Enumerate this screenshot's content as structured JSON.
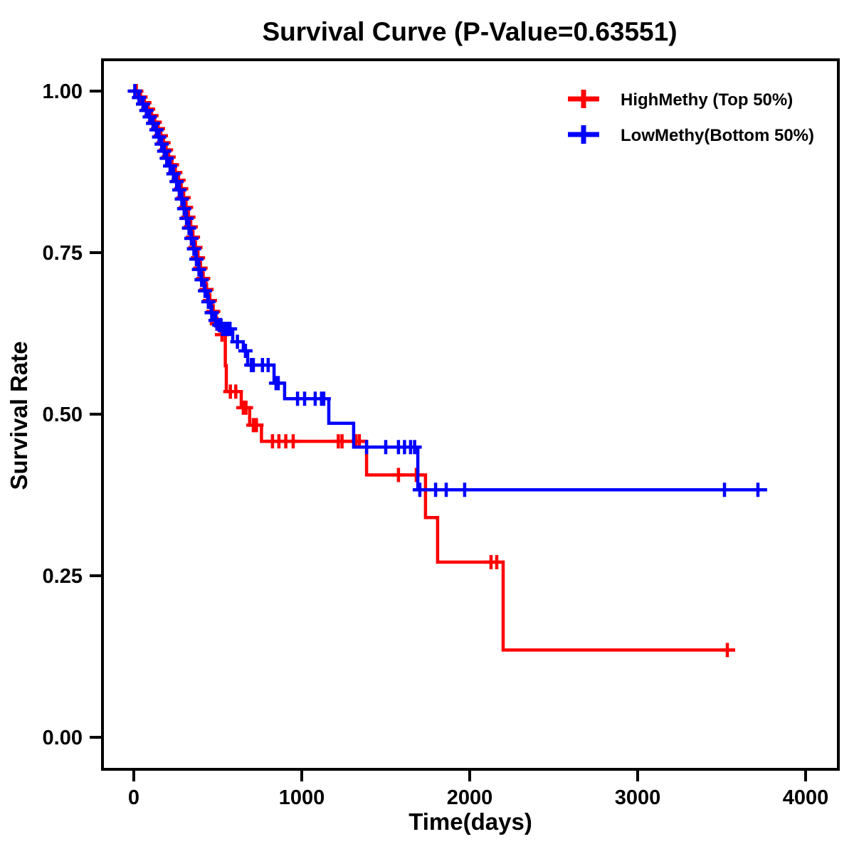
{
  "title": "Survival Curve (P-Value=0.63551)",
  "p_value": "0.63551",
  "colors": {
    "background": "#ffffff",
    "axis": "#000000",
    "high_methy": "#ff0000",
    "low_methy": "#0000ff"
  },
  "chart_data": {
    "type": "line",
    "subtype": "kaplan-meier-step",
    "title": "Survival Curve (P-Value=0.63551)",
    "xlabel": "Time(days)",
    "ylabel": "Survival Rate",
    "grid": false,
    "legend_position": "top-right-inside",
    "xlim": [
      -186,
      4195
    ],
    "ylim": [
      -0.05,
      1.048
    ],
    "x_ticks": [
      {
        "label": "0",
        "value": 0
      },
      {
        "label": "1000",
        "value": 1000
      },
      {
        "label": "2000",
        "value": 2000
      },
      {
        "label": "3000",
        "value": 3000
      },
      {
        "label": "4000",
        "value": 4000
      }
    ],
    "y_ticks": [
      {
        "label": "0.00",
        "value": 0.0
      },
      {
        "label": "0.25",
        "value": 0.25
      },
      {
        "label": "0.50",
        "value": 0.5
      },
      {
        "label": "0.75",
        "value": 0.75
      },
      {
        "label": "1.00",
        "value": 1.0
      }
    ],
    "series": [
      {
        "name": "HighMethy (Top 50%)",
        "color": "#ff0000",
        "end_day": 3581,
        "steps": [
          [
            0,
            1.0
          ],
          [
            35,
            0.991
          ],
          [
            60,
            0.982
          ],
          [
            80,
            0.972
          ],
          [
            100,
            0.962
          ],
          [
            120,
            0.952
          ],
          [
            140,
            0.942
          ],
          [
            158,
            0.931
          ],
          [
            173,
            0.92
          ],
          [
            188,
            0.909
          ],
          [
            203,
            0.898
          ],
          [
            222,
            0.886
          ],
          [
            242,
            0.874
          ],
          [
            262,
            0.862
          ],
          [
            278,
            0.849
          ],
          [
            293,
            0.835
          ],
          [
            307,
            0.82
          ],
          [
            320,
            0.805
          ],
          [
            334,
            0.79
          ],
          [
            348,
            0.774
          ],
          [
            362,
            0.758
          ],
          [
            377,
            0.742
          ],
          [
            392,
            0.726
          ],
          [
            408,
            0.71
          ],
          [
            428,
            0.693
          ],
          [
            448,
            0.676
          ],
          [
            468,
            0.659
          ],
          [
            489,
            0.64
          ],
          [
            520,
            0.623
          ],
          [
            545,
            0.575
          ],
          [
            551,
            0.535
          ],
          [
            640,
            0.51
          ],
          [
            690,
            0.483
          ],
          [
            760,
            0.458
          ],
          [
            1386,
            0.406
          ],
          [
            1737,
            0.34
          ],
          [
            1809,
            0.271
          ],
          [
            2199,
            0.135
          ]
        ],
        "censor_days": [
          15,
          40,
          63,
          85,
          105,
          124,
          144,
          161,
          177,
          192,
          207,
          227,
          247,
          266,
          282,
          297,
          311,
          325,
          339,
          352,
          367,
          382,
          397,
          413,
          433,
          453,
          473,
          495,
          525,
          575,
          607,
          652,
          668,
          712,
          730,
          826,
          864,
          905,
          949,
          1218,
          1240,
          1322,
          1343,
          1576,
          1682,
          2127,
          2161,
          3534
        ]
      },
      {
        "name": "LowMethy(Bottom 50%)",
        "color": "#0000ff",
        "end_day": 3771,
        "steps": [
          [
            0,
            1.0
          ],
          [
            28,
            0.99
          ],
          [
            52,
            0.98
          ],
          [
            72,
            0.97
          ],
          [
            92,
            0.96
          ],
          [
            112,
            0.95
          ],
          [
            132,
            0.94
          ],
          [
            148,
            0.929
          ],
          [
            163,
            0.918
          ],
          [
            178,
            0.907
          ],
          [
            193,
            0.896
          ],
          [
            212,
            0.884
          ],
          [
            232,
            0.872
          ],
          [
            252,
            0.86
          ],
          [
            268,
            0.847
          ],
          [
            283,
            0.833
          ],
          [
            297,
            0.818
          ],
          [
            310,
            0.803
          ],
          [
            326,
            0.788
          ],
          [
            340,
            0.772
          ],
          [
            355,
            0.756
          ],
          [
            370,
            0.74
          ],
          [
            385,
            0.724
          ],
          [
            400,
            0.708
          ],
          [
            420,
            0.691
          ],
          [
            440,
            0.674
          ],
          [
            460,
            0.657
          ],
          [
            483,
            0.645
          ],
          [
            505,
            0.638
          ],
          [
            520,
            0.632
          ],
          [
            589,
            0.612
          ],
          [
            652,
            0.598
          ],
          [
            678,
            0.576
          ],
          [
            835,
            0.548
          ],
          [
            898,
            0.524
          ],
          [
            1161,
            0.486
          ],
          [
            1309,
            0.449
          ],
          [
            1691,
            0.383
          ]
        ],
        "censor_days": [
          6,
          31,
          55,
          75,
          95,
          115,
          135,
          151,
          166,
          181,
          196,
          216,
          236,
          255,
          271,
          286,
          300,
          314,
          329,
          343,
          358,
          373,
          388,
          404,
          424,
          444,
          464,
          487,
          509,
          517,
          528,
          538,
          550,
          562,
          573,
          617,
          665,
          700,
          712,
          766,
          800,
          847,
          860,
          975,
          1017,
          1080,
          1118,
          1131,
          1386,
          1500,
          1576,
          1612,
          1648,
          1672,
          1703,
          1797,
          1860,
          1970,
          3517,
          3716
        ]
      }
    ]
  }
}
